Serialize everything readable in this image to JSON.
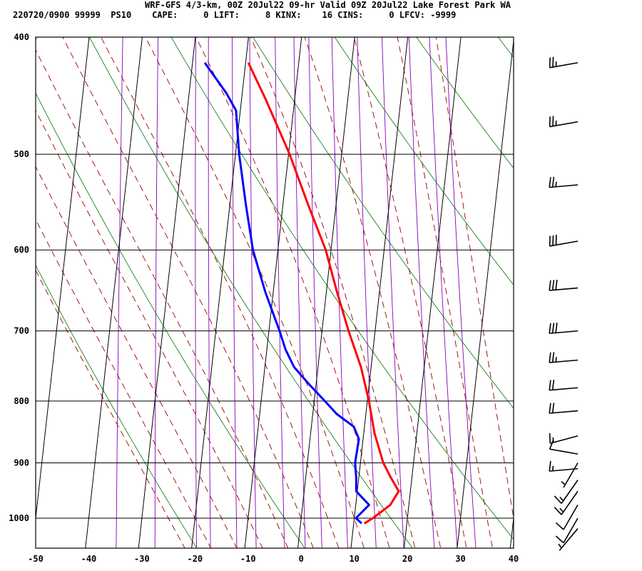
{
  "header": {
    "line1": "WRF-GFS 4/3-km, 00Z 20Jul22 09-hr Valid 09Z 20Jul22 Lake Forest Park WA",
    "line2": "220720/0900 99999  PS10    CAPE:     0 LIFT:     8 KINX:    16 CINS:     0 LFCV: -9999"
  },
  "chart_data": {
    "type": "line",
    "subtype": "skew-t log-p sounding",
    "x_ticks": [
      -50,
      -40,
      -30,
      -20,
      -10,
      0,
      10,
      20,
      30,
      40
    ],
    "p_ticks": [
      400,
      500,
      600,
      700,
      800,
      900,
      1000
    ],
    "xlim": [
      -50,
      40
    ],
    "plim": [
      400,
      1040
    ],
    "xlabel": "",
    "ylabel": "",
    "colors": {
      "temperature": "#ff0000",
      "dewpoint": "#0000ff",
      "dry_adiabat": "#007700",
      "moist_adiabat": "#990000",
      "mixing_ratio": "#8800bb",
      "grid": "#000000"
    },
    "series": [
      {
        "key": "temperature",
        "points": [
          [
            1010,
            12.0
          ],
          [
            1000,
            13.5
          ],
          [
            975,
            16.5
          ],
          [
            950,
            17.8
          ],
          [
            925,
            16.0
          ],
          [
            900,
            14.3
          ],
          [
            850,
            12.0
          ],
          [
            800,
            10.3
          ],
          [
            750,
            8.1
          ],
          [
            700,
            5.0
          ],
          [
            650,
            2.0
          ],
          [
            600,
            -1.0
          ],
          [
            550,
            -5.3
          ],
          [
            500,
            -9.8
          ],
          [
            450,
            -15.5
          ],
          [
            420,
            -19.5
          ]
        ]
      },
      {
        "key": "dewpoint",
        "points": [
          [
            1010,
            11.5
          ],
          [
            1000,
            10.3
          ],
          [
            975,
            12.5
          ],
          [
            950,
            9.8
          ],
          [
            925,
            9.5
          ],
          [
            900,
            9.0
          ],
          [
            860,
            9.2
          ],
          [
            840,
            8.0
          ],
          [
            820,
            4.5
          ],
          [
            800,
            2.0
          ],
          [
            775,
            -1.3
          ],
          [
            750,
            -4.5
          ],
          [
            725,
            -6.5
          ],
          [
            700,
            -8.0
          ],
          [
            650,
            -11.5
          ],
          [
            600,
            -14.7
          ],
          [
            550,
            -17.0
          ],
          [
            500,
            -19.3
          ],
          [
            460,
            -20.8
          ],
          [
            445,
            -23.0
          ],
          [
            420,
            -27.7
          ]
        ]
      }
    ],
    "wind_barbs": [
      {
        "p": 420,
        "dir": 260,
        "kt": 25
      },
      {
        "p": 470,
        "dir": 260,
        "kt": 25
      },
      {
        "p": 530,
        "dir": 265,
        "kt": 25
      },
      {
        "p": 590,
        "dir": 260,
        "kt": 30
      },
      {
        "p": 645,
        "dir": 265,
        "kt": 30
      },
      {
        "p": 700,
        "dir": 265,
        "kt": 30
      },
      {
        "p": 740,
        "dir": 265,
        "kt": 25
      },
      {
        "p": 780,
        "dir": 265,
        "kt": 20
      },
      {
        "p": 815,
        "dir": 265,
        "kt": 20
      },
      {
        "p": 855,
        "dir": 255,
        "kt": 15
      },
      {
        "p": 885,
        "dir": 280,
        "kt": 10
      },
      {
        "p": 910,
        "dir": 265,
        "kt": 15
      },
      {
        "p": 900,
        "dir": 210,
        "kt": 5
      },
      {
        "p": 930,
        "dir": 215,
        "kt": 15
      },
      {
        "p": 950,
        "dir": 215,
        "kt": 15
      },
      {
        "p": 975,
        "dir": 210,
        "kt": 10
      },
      {
        "p": 1000,
        "dir": 210,
        "kt": 10
      },
      {
        "p": 1020,
        "dir": 220,
        "kt": 5
      }
    ]
  }
}
